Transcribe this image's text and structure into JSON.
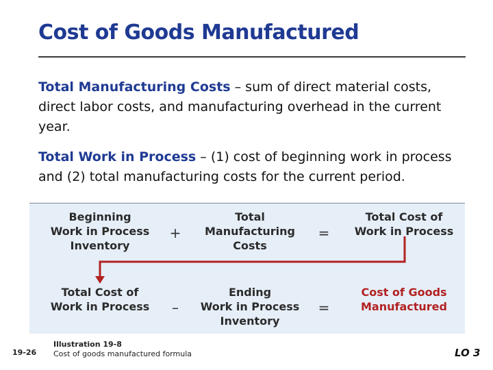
{
  "title": "Cost of Goods Manufactured",
  "paragraphs": [
    {
      "term": "Total Manufacturing Costs",
      "text": " – sum of direct material costs, direct labor costs, and manufacturing overhead in the current year."
    },
    {
      "term": "Total Work in Process",
      "text": " – (1) cost of beginning work in process and (2) total manufacturing costs for the current period."
    }
  ],
  "formula": {
    "row1": {
      "a": "Beginning\nWork in Process\nInventory",
      "op1": "+",
      "b": "Total\nManufacturing\nCosts",
      "op2": "=",
      "c": "Total Cost of\nWork in Process"
    },
    "row2": {
      "a": "Total Cost of\nWork in Process",
      "op1": "–",
      "b": "Ending\nWork in Process\nInventory",
      "op2": "=",
      "c": "Cost of Goods\nManufactured"
    },
    "arrow_color": "#b22222"
  },
  "footer": {
    "page_number": "19-26",
    "illustration_label": "Illustration 19-8",
    "illustration_caption": "Cost of goods manufactured formula",
    "learning_objective": "LO 3"
  },
  "colors": {
    "title": "#1f3a93",
    "diagram_bg": "#e6eef7",
    "highlight": "#b22222"
  }
}
